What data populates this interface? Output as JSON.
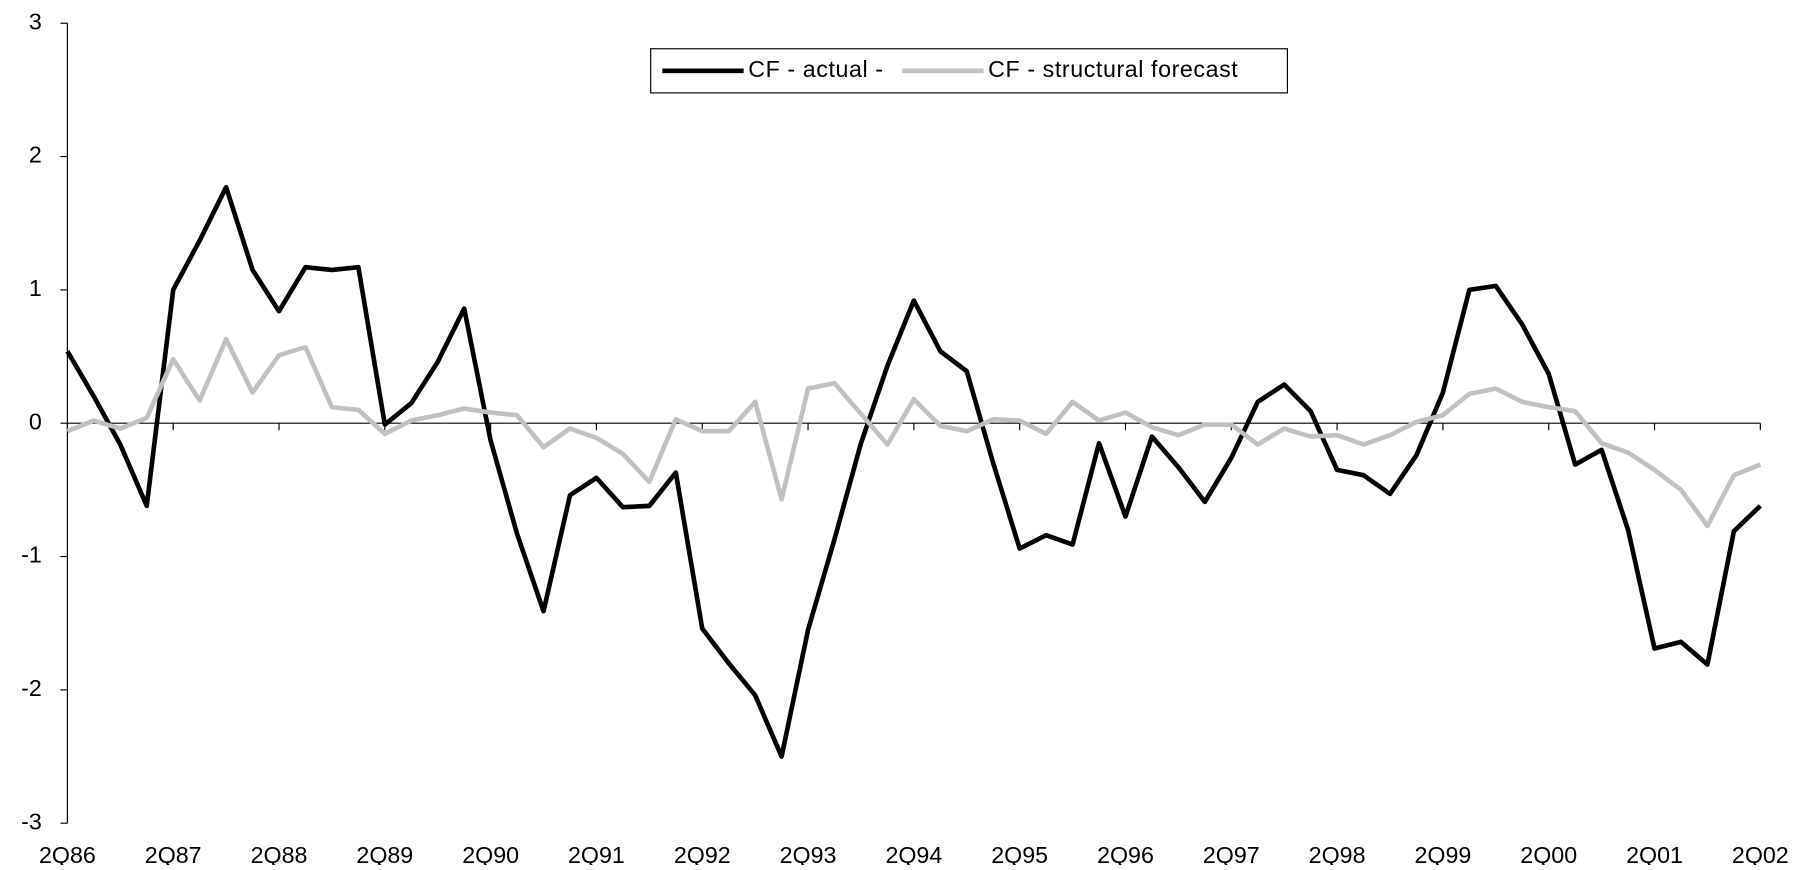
{
  "chart_data": {
    "type": "line",
    "categories": [
      "2Q86",
      null,
      null,
      null,
      "2Q87",
      null,
      null,
      null,
      "2Q88",
      null,
      null,
      null,
      "2Q89",
      null,
      null,
      null,
      "2Q90",
      null,
      null,
      null,
      "2Q91",
      null,
      null,
      null,
      "2Q92",
      null,
      null,
      null,
      "2Q93",
      null,
      null,
      null,
      "2Q94",
      null,
      null,
      null,
      "2Q95",
      null,
      null,
      null,
      "2Q96",
      null,
      null,
      null,
      "2Q97",
      null,
      null,
      null,
      "2Q98",
      null,
      null,
      null,
      "2Q99",
      null,
      null,
      null,
      "2Q00",
      null,
      null,
      null,
      "2Q01",
      null,
      null,
      null,
      "2Q02"
    ],
    "series": [
      {
        "name": "CF - actual -",
        "color": "#000000",
        "values": [
          0.54,
          0.2,
          -0.16,
          -0.62,
          1.0,
          1.37,
          1.77,
          1.15,
          0.84,
          1.17,
          1.15,
          1.17,
          -0.01,
          0.15,
          0.46,
          0.86,
          -0.13,
          -0.83,
          -1.41,
          -0.54,
          -0.41,
          -0.63,
          -0.62,
          -0.37,
          -1.54,
          -1.8,
          -2.04,
          -2.5,
          -1.55,
          -0.87,
          -0.15,
          0.43,
          0.92,
          0.54,
          0.39,
          -0.3,
          -0.94,
          -0.84,
          -0.91,
          -0.15,
          -0.7,
          -0.1,
          -0.33,
          -0.59,
          -0.26,
          0.16,
          0.29,
          0.09,
          -0.35,
          -0.39,
          -0.53,
          -0.24,
          0.23,
          1.0,
          1.03,
          0.74,
          0.37,
          -0.31,
          -0.2,
          -0.8,
          -1.69,
          -1.64,
          -1.81,
          -0.81,
          -0.62
        ]
      },
      {
        "name": "CF - structural forecast",
        "color": "#c0c0c0",
        "values": [
          -0.06,
          0.02,
          -0.04,
          0.04,
          0.48,
          0.17,
          0.63,
          0.23,
          0.51,
          0.57,
          0.12,
          0.1,
          -0.08,
          0.02,
          0.06,
          0.11,
          0.08,
          0.06,
          -0.18,
          -0.04,
          -0.11,
          -0.23,
          -0.44,
          0.03,
          -0.06,
          -0.06,
          0.16,
          -0.57,
          0.26,
          0.3,
          0.07,
          -0.16,
          0.18,
          -0.02,
          -0.06,
          0.03,
          0.02,
          -0.08,
          0.16,
          0.02,
          0.08,
          -0.03,
          -0.09,
          -0.01,
          -0.01,
          -0.16,
          -0.04,
          -0.1,
          -0.09,
          -0.16,
          -0.09,
          0.01,
          0.06,
          0.22,
          0.26,
          0.16,
          0.12,
          0.09,
          -0.15,
          -0.22,
          -0.35,
          -0.5,
          -0.77,
          -0.39,
          -0.31
        ]
      }
    ],
    "ylim": [
      -3,
      3
    ],
    "yticks": [
      -3,
      -2,
      -1,
      0,
      1,
      2,
      3
    ],
    "legend": "upper center"
  }
}
